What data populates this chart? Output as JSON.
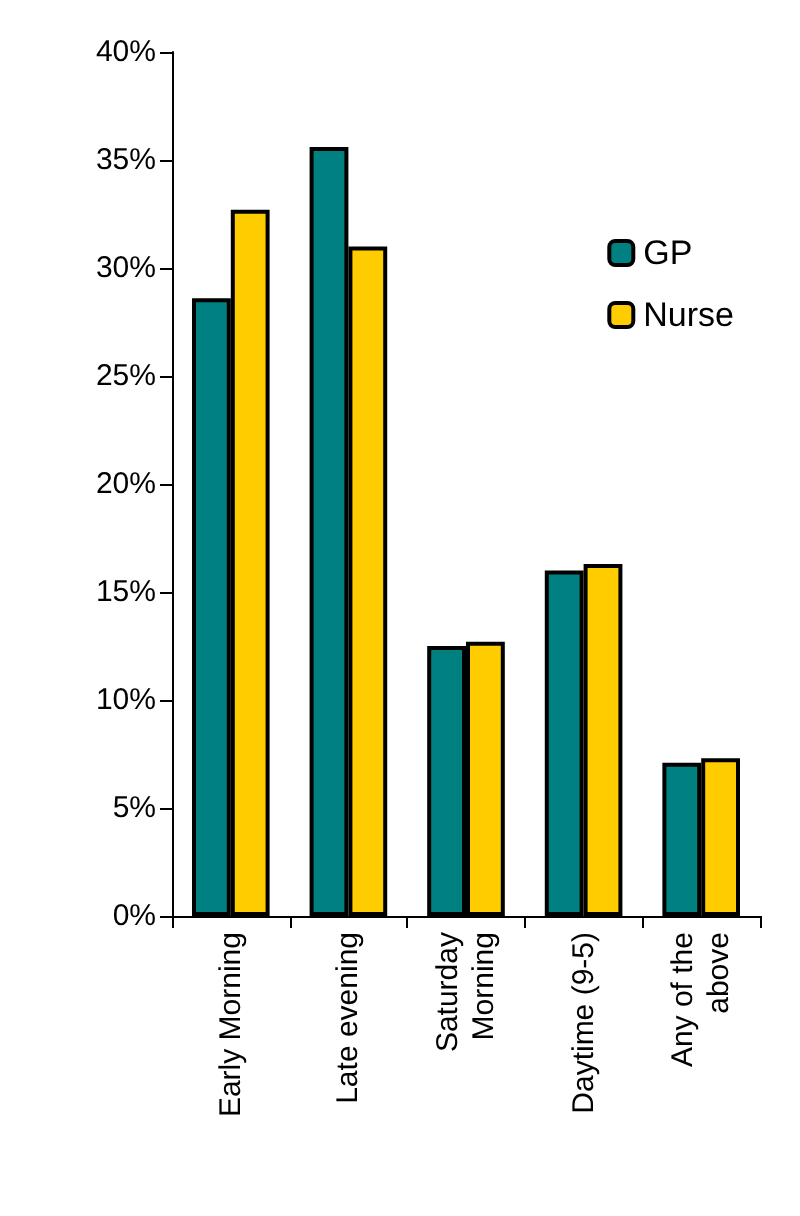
{
  "chart_data": {
    "type": "bar",
    "categories": [
      "Early Morning",
      "Late evening",
      "Saturday\nMorning",
      "Daytime (9-5)",
      "Any of the\nabove"
    ],
    "series": [
      {
        "name": "GP",
        "color": "#008080",
        "values": [
          28.6,
          35.6,
          12.5,
          16.0,
          7.1
        ]
      },
      {
        "name": "Nurse",
        "color": "#ffcc00",
        "values": [
          32.7,
          31.0,
          12.7,
          16.3,
          7.3
        ]
      }
    ],
    "ylim": [
      0,
      40
    ],
    "yticks": [
      {
        "value": 0,
        "label": "0%"
      },
      {
        "value": 5,
        "label": "5%"
      },
      {
        "value": 10,
        "label": "10%"
      },
      {
        "value": 15,
        "label": "15%"
      },
      {
        "value": 20,
        "label": "20%"
      },
      {
        "value": 25,
        "label": "25%"
      },
      {
        "value": 30,
        "label": "30%"
      },
      {
        "value": 35,
        "label": "35%"
      },
      {
        "value": 40,
        "label": "40%"
      }
    ],
    "grid": false,
    "legend": "top right"
  }
}
